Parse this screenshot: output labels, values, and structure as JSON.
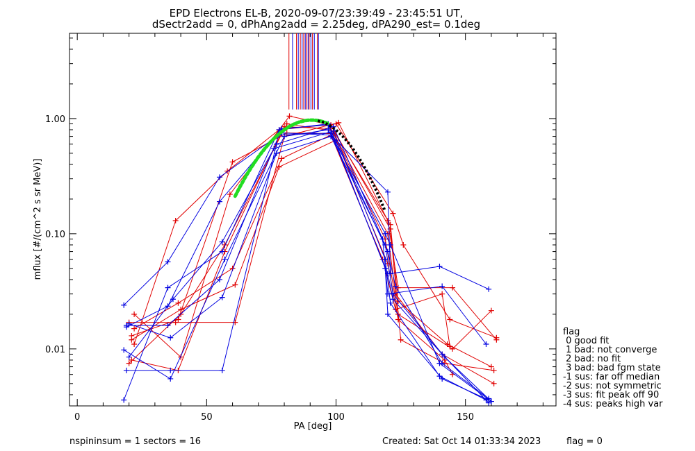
{
  "chart_data": {
    "type": "line",
    "title": "EPD Electrons EL-B, 2020-09-07/23:39:49 - 23:45:51 UT,",
    "subtitle": "dSectr2add = 0, dPhAng2add = 2.25deg, dPA290_est=   0.1deg",
    "xlabel": "PA [deg]",
    "ylabel": "mflux [#/(cm^2 s sr MeV)]",
    "xlim": [
      -3,
      185
    ],
    "ylim": [
      0.0032,
      5.5
    ],
    "y_scale": "log",
    "x_ticks": [
      0,
      50,
      100,
      150
    ],
    "x_tick_labels": [
      "0",
      "50",
      "100",
      "150"
    ],
    "y_ticks": [
      0.01,
      0.1,
      1.0
    ],
    "y_tick_labels": [
      "0.01",
      "0.10",
      "1.00"
    ],
    "grid": false,
    "series_colors": {
      "red": "#e00000",
      "blue": "#0000e0",
      "green": "#22dd22",
      "black": "#000000"
    },
    "vertical_lines": {
      "red_x": [
        81.8,
        84.7,
        86.2,
        87.5,
        88.6,
        89.6,
        90.9,
        92.8
      ],
      "blue_x": [
        83.2,
        85.4,
        86.9,
        88.1,
        89.2,
        90.3,
        91.6,
        93.2
      ],
      "y_from": 1.2,
      "y_to": 5.5
    },
    "series": [
      {
        "color": "red",
        "values": [
          [
            21,
            0.008
          ],
          [
            39,
            0.0065
          ],
          [
            57,
            0.07
          ],
          [
            80,
            0.85
          ],
          [
            98,
            0.82
          ],
          [
            120,
            0.1
          ],
          [
            123,
            0.03
          ],
          [
            141,
            0.009
          ],
          [
            161,
            0.005
          ]
        ]
      },
      {
        "color": "red",
        "values": [
          [
            20,
            0.0075
          ],
          [
            40,
            0.02
          ],
          [
            57,
            0.08
          ],
          [
            81,
            0.9
          ],
          [
            99,
            0.78
          ],
          [
            121,
            0.12
          ],
          [
            124,
            0.026
          ],
          [
            143,
            0.011
          ],
          [
            160,
            0.007
          ]
        ]
      },
      {
        "color": "red",
        "values": [
          [
            22,
            0.011
          ],
          [
            38,
            0.13
          ],
          [
            58,
            0.35
          ],
          [
            78,
            0.8
          ],
          [
            100,
            0.9
          ],
          [
            122,
            0.15
          ],
          [
            126,
            0.08
          ],
          [
            144,
            0.018
          ],
          [
            162,
            0.0125
          ]
        ]
      },
      {
        "color": "red",
        "values": [
          [
            21,
            0.013
          ],
          [
            39,
            0.018
          ],
          [
            60,
            0.42
          ],
          [
            81,
            0.75
          ],
          [
            99,
            0.74
          ],
          [
            119,
            0.09
          ],
          [
            124,
            0.02
          ],
          [
            145,
            0.01
          ],
          [
            160,
            0.0215
          ]
        ]
      },
      {
        "color": "red",
        "values": [
          [
            22,
            0.02
          ],
          [
            40,
            0.0085
          ],
          [
            59,
            0.22
          ],
          [
            82,
            1.05
          ],
          [
            98,
            0.88
          ],
          [
            121,
            0.11
          ],
          [
            125,
            0.012
          ],
          [
            142,
            0.0075
          ],
          [
            161,
            0.0065
          ]
        ]
      },
      {
        "color": "red",
        "values": [
          [
            20,
            0.017
          ],
          [
            38,
            0.017
          ],
          [
            61,
            0.017
          ],
          [
            80,
            0.7
          ],
          [
            101,
            0.92
          ],
          [
            120,
            0.13
          ],
          [
            124,
            0.034
          ],
          [
            145,
            0.034
          ],
          [
            162,
            0.012
          ]
        ]
      },
      {
        "color": "red",
        "values": [
          [
            22,
            0.015
          ],
          [
            39,
            0.025
          ],
          [
            60,
            0.05
          ],
          [
            79,
            0.45
          ],
          [
            98,
            0.72
          ],
          [
            118,
            0.06
          ],
          [
            123,
            0.022
          ],
          [
            141,
            0.03
          ],
          [
            144,
            0.0105
          ]
        ]
      },
      {
        "color": "red",
        "values": [
          [
            21,
            0.012
          ],
          [
            40,
            0.022
          ],
          [
            61,
            0.036
          ],
          [
            78,
            0.38
          ],
          [
            100,
            0.65
          ],
          [
            120,
            0.055
          ],
          [
            124,
            0.018
          ],
          [
            142,
            0.008
          ],
          [
            145,
            0.006
          ]
        ]
      },
      {
        "color": "blue",
        "values": [
          [
            18,
            0.0036
          ],
          [
            35,
            0.034
          ],
          [
            56,
            0.07
          ],
          [
            78,
            0.8
          ],
          [
            97,
            0.9
          ],
          [
            119,
            0.05
          ],
          [
            120,
            0.02
          ],
          [
            141,
            0.0055
          ],
          [
            159,
            0.0036
          ]
        ]
      },
      {
        "color": "blue",
        "values": [
          [
            18,
            0.024
          ],
          [
            35,
            0.057
          ],
          [
            55,
            0.31
          ],
          [
            79,
            0.75
          ],
          [
            98,
            0.72
          ],
          [
            120,
            0.23
          ],
          [
            121,
            0.045
          ],
          [
            140,
            0.052
          ],
          [
            159,
            0.033
          ]
        ]
      },
      {
        "color": "blue",
        "values": [
          [
            19,
            0.0065
          ],
          [
            36,
            0.0065
          ],
          [
            56,
            0.0065
          ],
          [
            77,
            0.6
          ],
          [
            99,
            0.85
          ],
          [
            118,
            0.09
          ],
          [
            120,
            0.03
          ],
          [
            141,
            0.035
          ],
          [
            158,
            0.011
          ]
        ]
      },
      {
        "color": "blue",
        "values": [
          [
            18,
            0.0098
          ],
          [
            36,
            0.0055
          ],
          [
            57,
            0.06
          ],
          [
            80,
            0.7
          ],
          [
            97,
            0.8
          ],
          [
            119,
            0.1
          ],
          [
            121,
            0.08
          ],
          [
            140,
            0.0075
          ],
          [
            160,
            0.0035
          ]
        ]
      },
      {
        "color": "blue",
        "values": [
          [
            19,
            0.016
          ],
          [
            35,
            0.016
          ],
          [
            55,
            0.04
          ],
          [
            78,
            0.72
          ],
          [
            98,
            0.75
          ],
          [
            120,
            0.045
          ],
          [
            122,
            0.027
          ],
          [
            141,
            0.009
          ],
          [
            159,
            0.0034
          ]
        ]
      },
      {
        "color": "blue",
        "values": [
          [
            20,
            0.0085
          ],
          [
            37,
            0.027
          ],
          [
            56,
            0.085
          ],
          [
            76,
            0.55
          ],
          [
            99,
            0.78
          ],
          [
            119,
            0.06
          ],
          [
            121,
            0.025
          ],
          [
            140,
            0.0058
          ],
          [
            158,
            0.0036
          ]
        ]
      },
      {
        "color": "blue",
        "values": [
          [
            19,
            0.0155
          ],
          [
            35,
            0.0235
          ],
          [
            55,
            0.19
          ],
          [
            79,
            0.82
          ],
          [
            97,
            0.88
          ],
          [
            120,
            0.07
          ],
          [
            123,
            0.035
          ],
          [
            141,
            0.0075
          ],
          [
            159,
            0.0037
          ]
        ]
      },
      {
        "color": "blue",
        "values": [
          [
            20,
            0.0165
          ],
          [
            36,
            0.0125
          ],
          [
            56,
            0.028
          ],
          [
            77,
            0.5
          ],
          [
            98,
            0.7
          ],
          [
            119,
            0.08
          ],
          [
            122,
            0.03
          ],
          [
            142,
            0.0085
          ],
          [
            160,
            0.0035
          ]
        ]
      }
    ],
    "fit_green": {
      "x_range": [
        61,
        97
      ],
      "peak_x": 90.6,
      "peak_y": 0.97
    },
    "fit_black": {
      "x_range": [
        93,
        119
      ],
      "peak_x": 90.6,
      "peak_y": 0.97
    },
    "legend": {
      "placement": "right",
      "title": "flag",
      "items": [
        " 0 good fit",
        " 1 bad: not converge",
        " 2 bad: no fit",
        " 3 bad: bad fgm state",
        "-1 sus: far off median",
        "-2 sus: not symmetric",
        "-3 sus: fit peak off 90",
        "-4 sus: peaks high var"
      ]
    }
  },
  "footer": {
    "left": "nspininsum =  1  sectors = 16",
    "created": "Created: Sat Oct 14 01:33:34 2023",
    "flag": "flag = 0"
  }
}
